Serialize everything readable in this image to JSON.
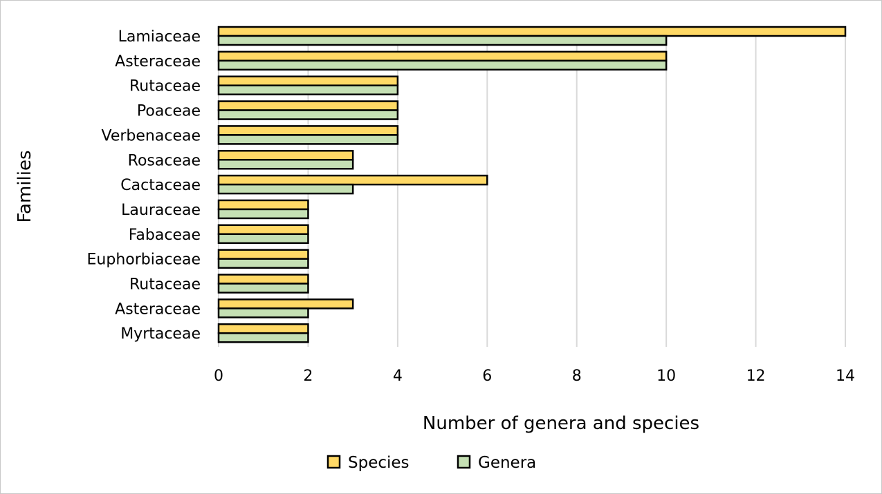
{
  "chart_data": {
    "type": "bar",
    "orientation": "horizontal",
    "title": "",
    "xlabel": "Number of genera and species",
    "ylabel": "Families",
    "xlim": [
      0,
      14
    ],
    "xticks": [
      "0",
      "2",
      "4",
      "6",
      "8",
      "10",
      "12",
      "14"
    ],
    "grid": true,
    "legend_position": "bottom",
    "categories": [
      "Lamiaceae",
      "Asteraceae",
      "Rutaceae",
      "Poaceae",
      "Verbenaceae",
      "Rosaceae",
      "Cactaceae",
      "Lauraceae",
      "Fabaceae",
      "Euphorbiaceae",
      "Rutaceae",
      "Asteraceae",
      "Myrtaceae"
    ],
    "series": [
      {
        "name": "Species",
        "color": "#FFD966",
        "values": [
          14,
          10,
          4,
          4,
          4,
          3,
          6,
          2,
          2,
          2,
          2,
          3,
          2
        ]
      },
      {
        "name": "Genera",
        "color": "#C5E0B4",
        "values": [
          10,
          10,
          4,
          4,
          4,
          3,
          3,
          2,
          2,
          2,
          2,
          2,
          2
        ]
      }
    ]
  }
}
